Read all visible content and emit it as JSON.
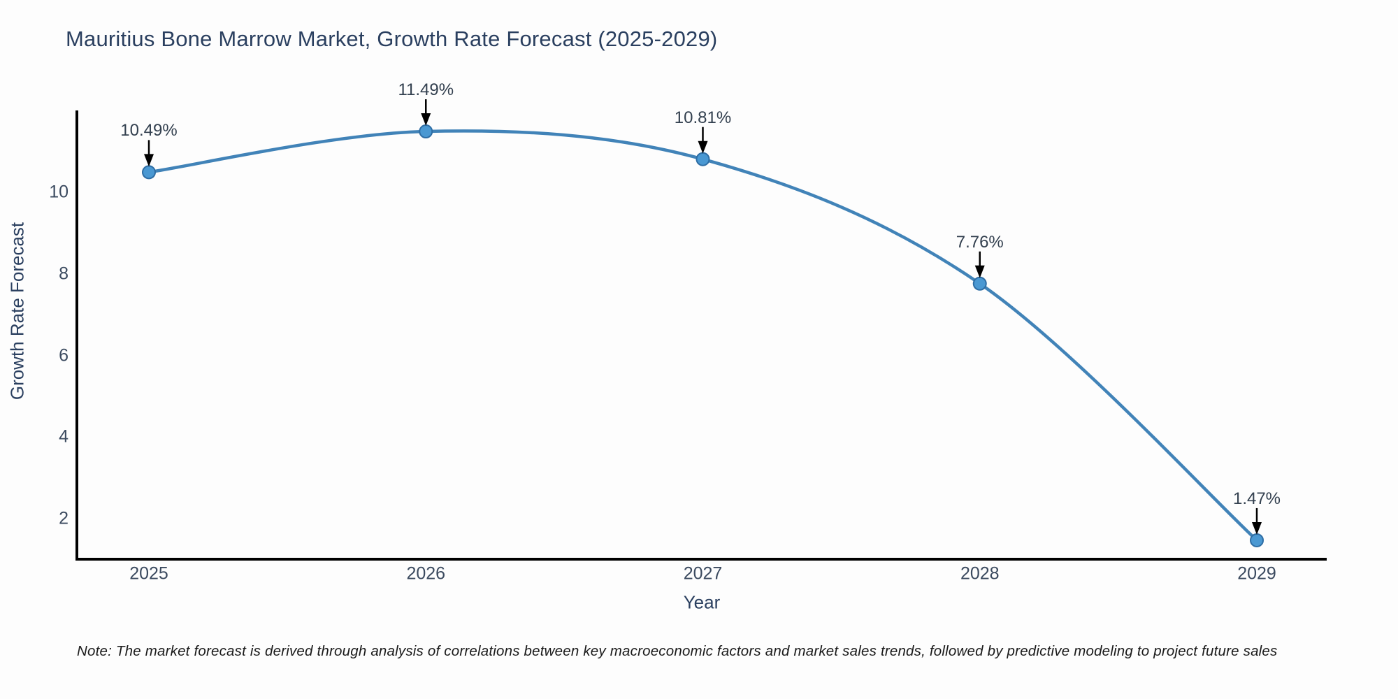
{
  "chart": {
    "title": "Mauritius Bone Marrow Market, Growth Rate Forecast (2025-2029)",
    "xlabel": "Year",
    "ylabel": "Growth Rate Forecast",
    "note": "Note: The market forecast is derived through analysis of correlations between key macroeconomic factors and market sales trends, followed by predictive modeling to project future sales"
  },
  "chart_data": {
    "type": "line",
    "title": "Mauritius Bone Marrow Market, Growth Rate Forecast (2025-2029)",
    "x": [
      2025,
      2026,
      2027,
      2028,
      2029
    ],
    "series": [
      {
        "name": "Growth Rate Forecast",
        "values": [
          10.49,
          11.49,
          10.81,
          7.76,
          1.47
        ]
      }
    ],
    "point_labels": [
      "10.49%",
      "11.49%",
      "10.81%",
      "7.76%",
      "1.47%"
    ],
    "xlabel": "Year",
    "ylabel": "Growth Rate Forecast",
    "yticks": [
      2,
      4,
      6,
      8,
      10
    ],
    "ylim": [
      1.0,
      12.0
    ],
    "grid": false,
    "legend": "none",
    "line_style": "spline",
    "colors": {
      "line": "#4183b8",
      "marker_fill": "#4a98d2",
      "marker_edge": "#2e6da4",
      "axis": "#000000",
      "annotation_arrow": "#000000",
      "title_text": "#2a3f5f"
    }
  }
}
